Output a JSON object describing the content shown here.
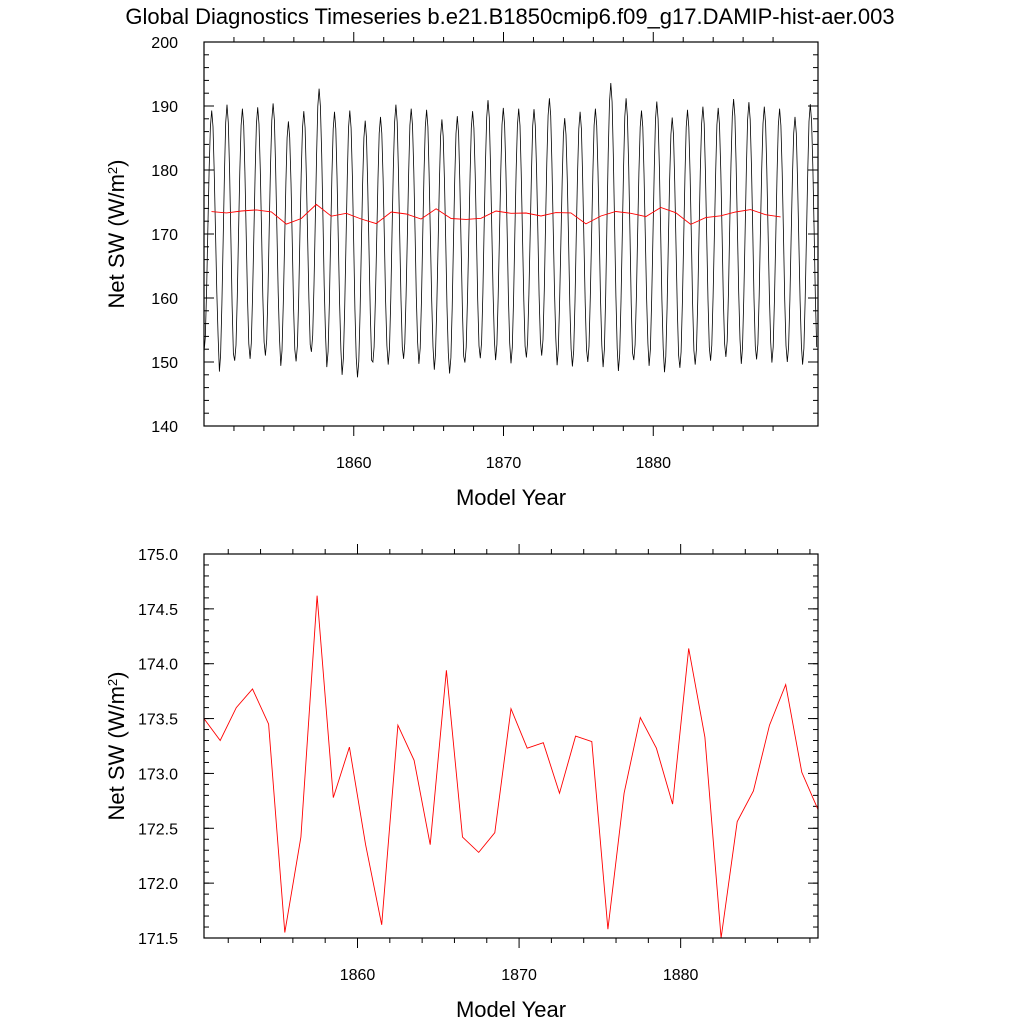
{
  "title": "Global Diagnostics Timeseries b.e21.B1850cmip6.f09_g17.DAMIP-hist-aer.003",
  "colors": {
    "monthly": "#000000",
    "annual": "#ff0000",
    "axes": "#000000"
  },
  "chart_data": [
    {
      "type": "line",
      "title": "Global Diagnostics Timeseries b.e21.B1850cmip6.f09_g17.DAMIP-hist-aer.003",
      "xlabel": "Model Year",
      "ylabel_main": "Net SW (W/m",
      "ylabel_sup": "2",
      "ylabel_close": ")",
      "xlim": [
        1850,
        1891
      ],
      "ylim": [
        140,
        200
      ],
      "xticks": [
        1860,
        1870,
        1880
      ],
      "xtick_labels": [
        "1860",
        "1870",
        "1880"
      ],
      "yticks": [
        140,
        150,
        160,
        170,
        180,
        190,
        200
      ],
      "ytick_labels": [
        "140",
        "150",
        "160",
        "170",
        "180",
        "190",
        "200"
      ],
      "grid": false,
      "monthly_cycle": {
        "description_free": true,
        "year_start": 1850.0,
        "year_end": 1891.0,
        "peaks": [
          189.3,
          190.2,
          189.6,
          189.8,
          190.4,
          187.6,
          189.2,
          192.7,
          189.1,
          189.3,
          187.7,
          188.3,
          190.2,
          189.6,
          189.4,
          187.9,
          188.4,
          189.2,
          190.9,
          189.7,
          189.6,
          189.5,
          191.2,
          188.1,
          189.1,
          189.6,
          193.6,
          191.2,
          189.3,
          190.7,
          188.2,
          189.4,
          189.9,
          189.7,
          191.1,
          190.6,
          189.9,
          189.6,
          188.3,
          190.3
        ],
        "troughs": [
          151.5,
          148.5,
          150.2,
          150.5,
          151.0,
          149.4,
          150.1,
          151.6,
          149.2,
          148.0,
          147.6,
          150.0,
          149.6,
          150.5,
          149.7,
          148.8,
          148.2,
          149.9,
          150.6,
          150.3,
          149.8,
          150.7,
          151.0,
          149.5,
          149.3,
          150.0,
          149.2,
          148.6,
          150.3,
          149.4,
          148.4,
          149.1,
          149.6,
          150.2,
          150.8,
          149.7,
          150.4,
          149.9,
          150.0,
          149.6
        ]
      },
      "series": [
        {
          "name": "",
          "x": [
            1850.5,
            1851.5,
            1852.5,
            1853.5,
            1854.5,
            1855.5,
            1856.5,
            1857.5,
            1858.5,
            1859.5,
            1860.5,
            1861.5,
            1862.5,
            1863.5,
            1864.5,
            1865.5,
            1866.5,
            1867.5,
            1868.5,
            1869.5,
            1870.5,
            1871.5,
            1872.5,
            1873.5,
            1874.5,
            1875.5,
            1876.5,
            1877.5,
            1878.5,
            1879.5,
            1880.5,
            1881.5,
            1882.5,
            1883.5,
            1884.5,
            1885.5,
            1886.5,
            1887.5,
            1888.5
          ],
          "y": [
            173.5,
            173.3,
            173.6,
            173.77,
            173.45,
            171.55,
            172.42,
            174.62,
            172.78,
            173.24,
            172.35,
            171.62,
            173.44,
            173.12,
            172.35,
            173.94,
            172.42,
            172.28,
            172.46,
            173.59,
            173.23,
            173.28,
            172.82,
            173.34,
            173.29,
            171.58,
            172.82,
            173.51,
            173.23,
            172.72,
            174.14,
            173.33,
            171.5,
            172.56,
            172.84,
            173.44,
            173.81,
            173.01,
            172.67
          ]
        }
      ]
    },
    {
      "type": "line",
      "xlabel": "Model Year",
      "ylabel_main": "Net SW (W/m",
      "ylabel_sup": "2",
      "ylabel_close": ")",
      "xlim": [
        1850.5,
        1888.5
      ],
      "ylim": [
        171.5,
        175.0
      ],
      "xticks": [
        1860,
        1870,
        1880
      ],
      "xtick_labels": [
        "1860",
        "1870",
        "1880"
      ],
      "yticks": [
        171.5,
        172.0,
        172.5,
        173.0,
        173.5,
        174.0,
        174.5,
        175.0
      ],
      "ytick_labels": [
        "171.5",
        "172.0",
        "172.5",
        "173.0",
        "173.5",
        "174.0",
        "174.5",
        "175.0"
      ],
      "grid": false,
      "series": [
        {
          "name": "",
          "x": [
            1850.5,
            1851.5,
            1852.5,
            1853.5,
            1854.5,
            1855.5,
            1856.5,
            1857.5,
            1858.5,
            1859.5,
            1860.5,
            1861.5,
            1862.5,
            1863.5,
            1864.5,
            1865.5,
            1866.5,
            1867.5,
            1868.5,
            1869.5,
            1870.5,
            1871.5,
            1872.5,
            1873.5,
            1874.5,
            1875.5,
            1876.5,
            1877.5,
            1878.5,
            1879.5,
            1880.5,
            1881.5,
            1882.5,
            1883.5,
            1884.5,
            1885.5,
            1886.5,
            1887.5,
            1888.5
          ],
          "y": [
            173.5,
            173.3,
            173.6,
            173.77,
            173.45,
            171.55,
            172.42,
            174.62,
            172.78,
            173.24,
            172.35,
            171.62,
            173.44,
            173.12,
            172.35,
            173.94,
            172.42,
            172.28,
            172.46,
            173.59,
            173.23,
            173.28,
            172.82,
            173.34,
            173.29,
            171.58,
            172.82,
            173.51,
            173.23,
            172.72,
            174.14,
            173.33,
            171.5,
            172.56,
            172.84,
            173.44,
            173.81,
            173.01,
            172.67
          ]
        }
      ]
    }
  ]
}
